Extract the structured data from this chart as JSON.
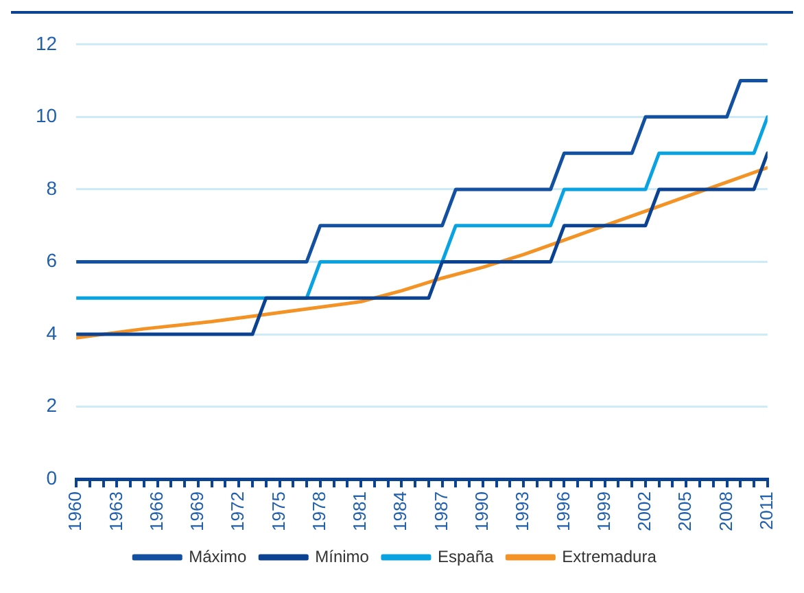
{
  "chart_data": {
    "type": "line",
    "xlim": [
      1960,
      2011
    ],
    "xticks": [
      1960,
      {
        "value": 1961,
        "label": null
      },
      {
        "value": 1962,
        "label": null
      },
      1963,
      {
        "value": 1964,
        "label": null
      },
      {
        "value": 1965,
        "label": null
      },
      1966,
      {
        "value": 1967,
        "label": null
      },
      {
        "value": 1968,
        "label": null
      },
      1969,
      {
        "value": 1970,
        "label": null
      },
      {
        "value": 1971,
        "label": null
      },
      1972,
      {
        "value": 1973,
        "label": null
      },
      {
        "value": 1974,
        "label": null
      },
      1975,
      {
        "value": 1976,
        "label": null
      },
      {
        "value": 1977,
        "label": null
      },
      1978,
      {
        "value": 1979,
        "label": null
      },
      {
        "value": 1980,
        "label": null
      },
      1981,
      {
        "value": 1982,
        "label": null
      },
      {
        "value": 1983,
        "label": null
      },
      1984,
      {
        "value": 1985,
        "label": null
      },
      {
        "value": 1986,
        "label": null
      },
      1987,
      {
        "value": 1988,
        "label": null
      },
      {
        "value": 1989,
        "label": null
      },
      1990,
      {
        "value": 1991,
        "label": null
      },
      {
        "value": 1992,
        "label": null
      },
      1993,
      {
        "value": 1994,
        "label": null
      },
      {
        "value": 1995,
        "label": null
      },
      1996,
      {
        "value": 1997,
        "label": null
      },
      {
        "value": 1998,
        "label": null
      },
      1999,
      {
        "value": 2000,
        "label": null
      },
      {
        "value": 2001,
        "label": null
      },
      2002,
      {
        "value": 2003,
        "label": null
      },
      {
        "value": 2004,
        "label": null
      },
      2005,
      {
        "value": 2006,
        "label": null
      },
      {
        "value": 2007,
        "label": null
      },
      2008,
      {
        "value": 2009,
        "label": null
      },
      {
        "value": 2010,
        "label": null
      },
      2011
    ],
    "ylim": [
      0,
      12
    ],
    "yticks": [
      0,
      2,
      4,
      6,
      8,
      10,
      12
    ],
    "grid": "y",
    "legend": "bottom",
    "marker": "none",
    "line_style": "solid",
    "series": [
      {
        "name": "Máximo",
        "color": "#1351a0",
        "x": [
          1960,
          1977,
          1978,
          1987,
          1988,
          1995,
          1996,
          2001,
          2002,
          2008,
          2009,
          2011
        ],
        "values": [
          6,
          6,
          7,
          7,
          8,
          8,
          9,
          9,
          10,
          10,
          11,
          11
        ]
      },
      {
        "name": "Mínimo",
        "color": "#0b4292",
        "x": [
          1960,
          1973,
          1974,
          1986,
          1987,
          1995,
          1996,
          2002,
          2003,
          2010,
          2011
        ],
        "values": [
          4,
          4,
          5,
          5,
          6,
          6,
          7,
          7,
          8,
          8,
          9
        ]
      },
      {
        "name": "España",
        "color": "#0aa3e2",
        "x": [
          1960,
          1977,
          1978,
          1987,
          1988,
          1995,
          1996,
          2002,
          2003,
          2010,
          2011
        ],
        "values": [
          5,
          5,
          6,
          6,
          7,
          7,
          8,
          8,
          9,
          9,
          10
        ]
      },
      {
        "name": "Extremadura",
        "color": "#f39325",
        "x": [
          1960,
          1965,
          1970,
          1973,
          1976,
          1981,
          1984,
          1987,
          1990,
          1993,
          1996,
          1999,
          2002,
          2005,
          2008,
          2011
        ],
        "values": [
          3.9,
          4.15,
          4.35,
          4.5,
          4.65,
          4.9,
          5.2,
          5.55,
          5.85,
          6.2,
          6.6,
          7.0,
          7.4,
          7.8,
          8.2,
          8.6
        ]
      }
    ]
  }
}
